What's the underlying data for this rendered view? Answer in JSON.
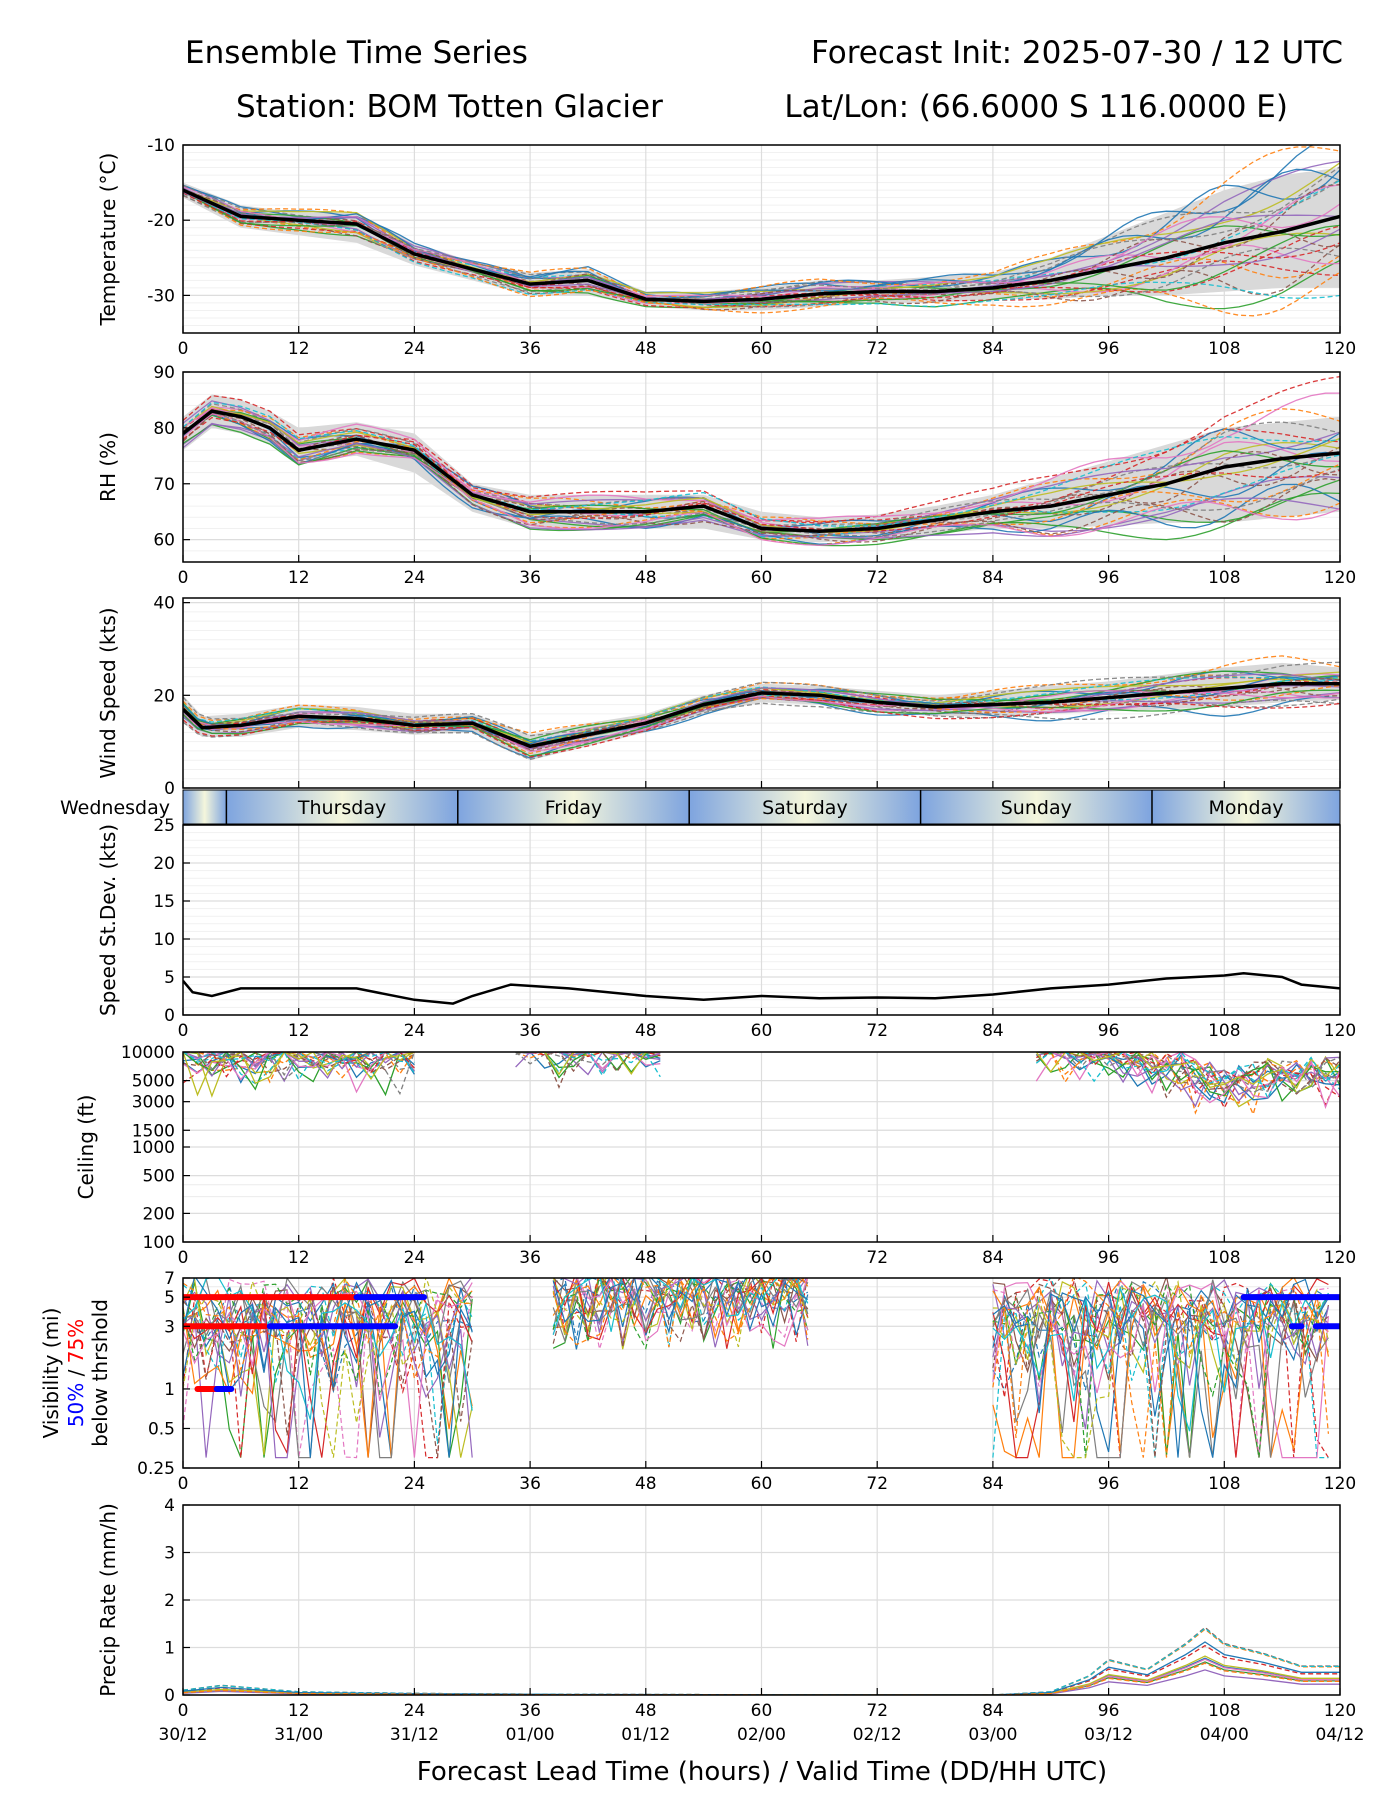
{
  "header": {
    "title_left": "Ensemble Time Series",
    "title_right": "Forecast Init: 2025-07-30 / 12 UTC",
    "station": "Station: BOM Totten Glacier",
    "latlon": "Lat/Lon: (66.6000 S 116.0000 E)"
  },
  "x_axis": {
    "label": "Forecast Lead Time (hours) / Valid Time (DD/HH UTC)",
    "lead_ticks": [
      "0",
      "12",
      "24",
      "36",
      "48",
      "60",
      "72",
      "84",
      "96",
      "108",
      "120"
    ],
    "valid_ticks": [
      "30/12",
      "31/00",
      "31/12",
      "01/00",
      "01/12",
      "02/00",
      "02/12",
      "03/00",
      "03/12",
      "04/00",
      "04/12"
    ]
  },
  "day_band": [
    "Wednesday",
    "Thursday",
    "Friday",
    "Saturday",
    "Sunday",
    "Monday"
  ],
  "colors": {
    "mean": "#000000",
    "spread": "#d9d9d9",
    "vis50": "#0000ff",
    "vis75": "#ff0000",
    "members": [
      "#1f77b4",
      "#ff7f0e",
      "#2ca02c",
      "#d62728",
      "#9467bd",
      "#8c564b",
      "#e377c2",
      "#7f7f7f",
      "#bcbd22",
      "#17becf"
    ]
  },
  "chart_data": [
    {
      "type": "line",
      "panel": "temperature",
      "ylabel": "Temperature (°C)",
      "ylim": [
        -35,
        -10
      ],
      "yticks": [
        "-10",
        "-20",
        "-30"
      ],
      "x": [
        0,
        6,
        12,
        18,
        24,
        30,
        36,
        42,
        48,
        54,
        60,
        66,
        72,
        78,
        84,
        90,
        96,
        102,
        108,
        114,
        120
      ],
      "mean": [
        -16,
        -19.5,
        -20,
        -20.5,
        -24.5,
        -26.5,
        -28.5,
        -28,
        -30.5,
        -30.8,
        -30.5,
        -29.8,
        -29.5,
        -29.5,
        -29,
        -28,
        -26.5,
        -25,
        -23,
        -21.5,
        -19.5
      ],
      "spread_low": [
        -17,
        -21,
        -22,
        -23,
        -26,
        -28,
        -30,
        -30,
        -31.5,
        -32,
        -32,
        -31.5,
        -31,
        -31,
        -30.5,
        -30.5,
        -30,
        -30,
        -29.5,
        -29,
        -29
      ],
      "spread_high": [
        -15,
        -18,
        -19,
        -19,
        -23,
        -25.5,
        -27,
        -26.5,
        -29.5,
        -29.5,
        -29,
        -28,
        -28,
        -27.5,
        -27,
        -25,
        -22,
        -19,
        -16,
        -14,
        -13
      ]
    },
    {
      "type": "line",
      "panel": "rh",
      "ylabel": "RH (%)",
      "ylim": [
        56,
        90
      ],
      "yticks": [
        "60",
        "70",
        "80",
        "90"
      ],
      "x": [
        0,
        3,
        6,
        9,
        12,
        18,
        24,
        30,
        36,
        42,
        48,
        54,
        60,
        66,
        72,
        78,
        84,
        90,
        96,
        102,
        108,
        114,
        120
      ],
      "mean": [
        79,
        83,
        82,
        80,
        76,
        78,
        76,
        68,
        65,
        65,
        65,
        66,
        62,
        61.5,
        62,
        63.5,
        65,
        66,
        68,
        70,
        73,
        74.5,
        75.5
      ],
      "spread_low": [
        76,
        80,
        79,
        77,
        74,
        75,
        72,
        65,
        62,
        62,
        62,
        62,
        60,
        59.5,
        60,
        61,
        62,
        62,
        62.5,
        63,
        63,
        64,
        65
      ],
      "spread_high": [
        82,
        86,
        85,
        83,
        80,
        81,
        79,
        70,
        68,
        68,
        68,
        68,
        65,
        64,
        64.5,
        66,
        68,
        71,
        74,
        77,
        80,
        81,
        82
      ]
    },
    {
      "type": "line",
      "panel": "wind",
      "ylabel": "Wind Speed (kts)",
      "ylim": [
        0,
        41
      ],
      "yticks": [
        "0",
        "20",
        "40"
      ],
      "x": [
        0,
        2,
        6,
        12,
        18,
        24,
        30,
        36,
        42,
        48,
        54,
        60,
        66,
        72,
        78,
        84,
        90,
        96,
        102,
        108,
        114,
        120
      ],
      "mean": [
        17,
        13,
        13.5,
        15.5,
        15,
        13.5,
        14,
        9,
        11.5,
        14,
        18,
        20.5,
        20,
        18.5,
        17.5,
        18,
        18.5,
        19.5,
        20.5,
        21.5,
        22.5,
        22.5
      ],
      "spread_low": [
        14,
        11,
        11,
        13,
        12.5,
        11.5,
        12,
        6,
        9,
        12,
        16,
        18.5,
        18,
        16.5,
        15.5,
        15.5,
        16,
        16.5,
        17,
        17.5,
        18.5,
        19
      ],
      "spread_high": [
        20,
        15.5,
        16,
        18,
        17.5,
        16,
        16,
        11.5,
        14,
        16,
        20,
        22.5,
        22,
        21,
        20,
        21,
        22,
        23,
        24.5,
        26,
        27,
        26
      ]
    },
    {
      "type": "line",
      "panel": "speed_stdev",
      "ylabel": "Speed St.Dev. (kts)",
      "ylim": [
        0,
        25
      ],
      "yticks": [
        "0",
        "5",
        "10",
        "15",
        "20",
        "25"
      ],
      "x": [
        0,
        1,
        3,
        6,
        12,
        18,
        24,
        28,
        30,
        34,
        40,
        48,
        54,
        60,
        66,
        72,
        78,
        84,
        90,
        96,
        102,
        108,
        110,
        114,
        116,
        120
      ],
      "mean": [
        4.5,
        3,
        2.5,
        3.5,
        3.5,
        3.5,
        2,
        1.5,
        2.5,
        4,
        3.5,
        2.5,
        2,
        2.5,
        2.2,
        2.3,
        2.2,
        2.7,
        3.5,
        4,
        4.8,
        5.2,
        5.5,
        5,
        4,
        3.5
      ]
    },
    {
      "type": "line",
      "panel": "ceiling",
      "ylabel": "Ceiling (ft)",
      "scale": "log",
      "ylim": [
        100,
        10000
      ],
      "yticks": [
        "10000",
        "5000",
        "3000",
        "1500",
        "1000",
        "500",
        "200",
        "100"
      ],
      "x": [
        0,
        2,
        4,
        8,
        12,
        16,
        20,
        24,
        36,
        40,
        44,
        48,
        90,
        96,
        102,
        108,
        114,
        120
      ],
      "low_envelope": [
        3500,
        2500,
        3000,
        3000,
        3000,
        3200,
        3000,
        3500,
        5000,
        3500,
        4000,
        3500,
        4000,
        3000,
        2500,
        1500,
        2000,
        2000
      ]
    },
    {
      "type": "line",
      "panel": "visibility",
      "ylabel_line1": "Visibility (mi)",
      "ylabel_line2a": "50%",
      "ylabel_line2b": " / ",
      "ylabel_line2c": "75%",
      "ylabel_line3": "below thrshold",
      "scale": "log",
      "ylim": [
        0.25,
        7
      ],
      "yticks": [
        "7",
        "5",
        "3",
        "1",
        "0.5",
        "0.25"
      ],
      "threshold_bars": [
        {
          "color": "red",
          "level": 5,
          "x": [
            0,
            18
          ]
        },
        {
          "color": "blue",
          "level": 5,
          "x": [
            18,
            25
          ]
        },
        {
          "color": "red",
          "level": 3,
          "x": [
            0,
            8.5
          ]
        },
        {
          "color": "blue",
          "level": 3,
          "x": [
            9,
            22
          ]
        },
        {
          "color": "red",
          "level": 1,
          "x": [
            1.5,
            3.5
          ]
        },
        {
          "color": "blue",
          "level": 1,
          "x": [
            3.5,
            5
          ]
        },
        {
          "color": "blue",
          "level": 5,
          "x": [
            110,
            120
          ]
        },
        {
          "color": "blue",
          "level": 3,
          "x": [
            115,
            116
          ]
        },
        {
          "color": "blue",
          "level": 3,
          "x": [
            117.5,
            120
          ]
        }
      ]
    },
    {
      "type": "line",
      "panel": "precip",
      "ylabel": "Precip Rate (mm/h)",
      "ylim": [
        0,
        4
      ],
      "yticks": [
        "0",
        "1",
        "2",
        "3",
        "4"
      ],
      "x": [
        0,
        4,
        12,
        24,
        40,
        84,
        90,
        94,
        96,
        100,
        104,
        106,
        108,
        112,
        116,
        120
      ],
      "max_member": [
        0.15,
        0.3,
        0.1,
        0.05,
        0.02,
        0,
        0.1,
        0.6,
        1.1,
        0.8,
        1.6,
        2.1,
        1.6,
        1.3,
        0.9,
        0.9
      ]
    }
  ]
}
